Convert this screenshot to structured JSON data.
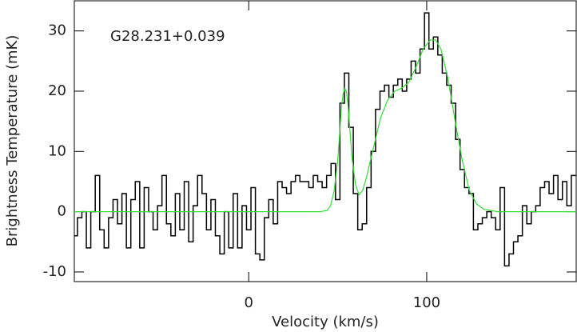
{
  "chart_data": {
    "type": "line",
    "annotation": "G28.231+0.039",
    "xlabel": "Velocity (km/s)",
    "ylabel": "Brightness Temperature (mK)",
    "xlim": [
      -98,
      184
    ],
    "ylim": [
      -11.6,
      35
    ],
    "xticks": [
      0,
      100
    ],
    "yticks": [
      -10,
      0,
      10,
      20,
      30
    ],
    "series": [
      {
        "color": "#000000",
        "drawstyle": "steps-mid",
        "x": [
          -97.5,
          -95,
          -92.5,
          -90,
          -87.5,
          -85,
          -82.5,
          -80,
          -77.5,
          -75,
          -72.5,
          -70,
          -67.5,
          -65,
          -62.5,
          -60,
          -57.5,
          -55,
          -52.5,
          -50,
          -47.5,
          -45,
          -42.5,
          -40,
          -37.5,
          -35,
          -32.5,
          -30,
          -27.5,
          -25,
          -22.5,
          -20,
          -17.5,
          -15,
          -12.5,
          -10,
          -7.5,
          -5,
          -2.5,
          0,
          2.5,
          5,
          7.5,
          10,
          12.5,
          15,
          17.5,
          20,
          22.5,
          25,
          27.5,
          30,
          32.5,
          35,
          37.5,
          40,
          42.5,
          45,
          47.5,
          50,
          52.5,
          55,
          57.5,
          60,
          62.5,
          65,
          67.5,
          70,
          72.5,
          75,
          77.5,
          80,
          82.5,
          85,
          87.5,
          90,
          92.5,
          95,
          97.5,
          100,
          102.5,
          105,
          107.5,
          110,
          112.5,
          115,
          117.5,
          120,
          122.5,
          125,
          127.5,
          130,
          132.5,
          135,
          137.5,
          140,
          142.5,
          145,
          147.5,
          150,
          152.5,
          155,
          157.5,
          160,
          162.5,
          165,
          167.5,
          170,
          172.5,
          175,
          177.5,
          180,
          182.5
        ],
        "values": [
          -4,
          -1,
          0,
          -6,
          0,
          6,
          -3,
          -6,
          -1,
          2,
          -2,
          3,
          -6,
          2,
          5,
          -6,
          4,
          0,
          -3,
          1,
          6,
          -2,
          -4,
          3,
          -3,
          5,
          -5,
          1,
          6,
          3,
          -3,
          2,
          -4,
          -7,
          0,
          -6,
          3,
          -6,
          1,
          -3,
          4,
          -7,
          -8,
          -1,
          2,
          -2,
          5,
          4,
          3,
          5,
          6,
          5,
          5,
          4,
          6,
          5,
          4,
          6,
          8,
          2,
          18,
          23,
          14,
          3,
          -3,
          -2,
          4,
          10,
          17,
          20,
          21,
          19,
          21,
          22,
          20,
          22,
          25,
          23,
          27,
          33,
          27,
          29,
          26,
          23,
          21,
          18,
          12,
          7,
          4,
          3,
          -3,
          -2,
          -1,
          0,
          -1,
          -3,
          4,
          -9,
          -7,
          -5,
          -4,
          1,
          -2,
          0,
          1,
          4,
          5,
          3,
          6,
          2,
          5,
          1,
          6
        ]
      },
      {
        "color": "#33dd33",
        "x": [
          -98,
          40,
          44,
          46,
          48,
          50,
          51,
          52,
          53,
          54,
          55,
          56,
          57,
          58,
          60,
          62,
          64,
          66,
          70,
          74,
          78,
          82,
          86,
          90,
          94,
          98,
          102,
          105,
          108,
          112,
          116,
          120,
          124,
          128,
          132,
          140,
          184
        ],
        "values": [
          0,
          0,
          0.2,
          1,
          3.5,
          8.5,
          12.5,
          17,
          19.5,
          20.5,
          19.8,
          17,
          13,
          9,
          4.5,
          2.8,
          3.5,
          5.5,
          10.5,
          15.5,
          18.5,
          20,
          20.5,
          21.5,
          24,
          27,
          28.5,
          28.5,
          27,
          22,
          15,
          8.5,
          3.5,
          1.3,
          0.4,
          0,
          0
        ]
      }
    ]
  }
}
